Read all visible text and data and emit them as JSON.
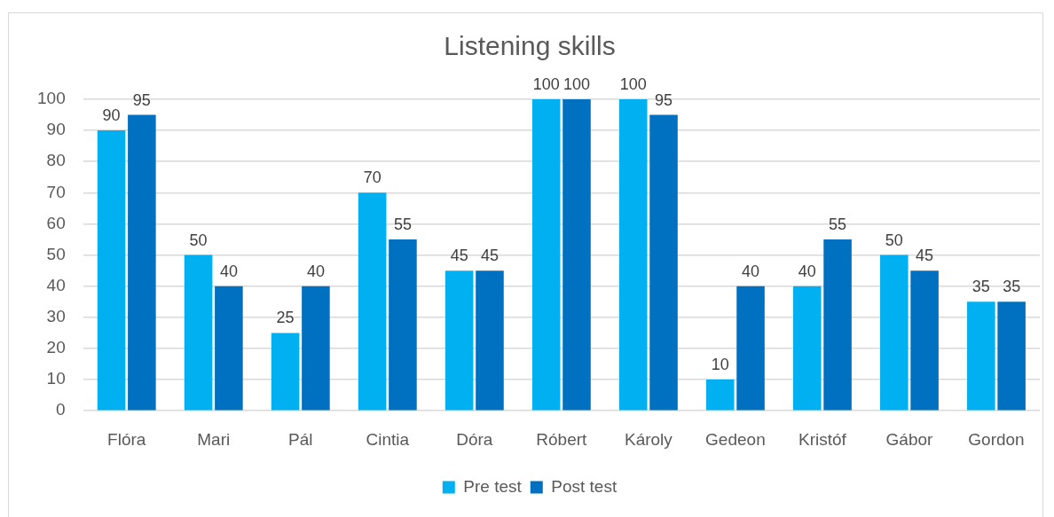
{
  "chart_data": {
    "type": "bar",
    "title": "Listening skills",
    "categories": [
      "Flóra",
      "Mari",
      "Pál",
      "Cintia",
      "Dóra",
      "Róbert",
      "Károly",
      "Gedeon",
      "Kristóf",
      "Gábor",
      "Gordon"
    ],
    "series": [
      {
        "name": "Pre test",
        "color": "#00b0f0",
        "values": [
          90,
          50,
          25,
          70,
          45,
          100,
          100,
          10,
          40,
          50,
          35
        ]
      },
      {
        "name": "Post test",
        "color": "#0070c0",
        "values": [
          95,
          40,
          40,
          55,
          45,
          100,
          95,
          40,
          55,
          45,
          35
        ]
      }
    ],
    "ylim": [
      0,
      100
    ],
    "yticks": [
      0,
      10,
      20,
      30,
      40,
      50,
      60,
      70,
      80,
      90,
      100
    ],
    "grid": "y",
    "legend": "bottom",
    "data_labels": true
  }
}
